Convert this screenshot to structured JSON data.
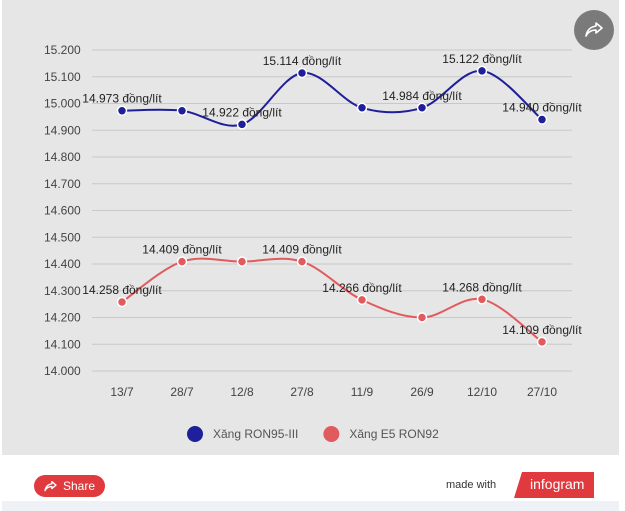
{
  "chart_data": {
    "type": "line",
    "categories": [
      "13/7",
      "28/7",
      "12/8",
      "27/8",
      "11/9",
      "26/9",
      "12/10",
      "27/10"
    ],
    "y_ticks": [
      "15.200",
      "15.100",
      "15.000",
      "14.900",
      "14.800",
      "14.700",
      "14.600",
      "14.500",
      "14.400",
      "14.300",
      "14.200",
      "14.100",
      "14.000"
    ],
    "ylim": [
      14.0,
      15.2
    ],
    "grid": true,
    "legend_position": "bottom-center",
    "series": [
      {
        "name": "Xăng RON95-III",
        "color": "#1f1f99",
        "values": [
          14.973,
          14.973,
          14.922,
          15.114,
          14.984,
          14.984,
          15.122,
          14.94
        ],
        "point_labels": [
          "14.973 đồng/lít",
          "",
          "14.922 đồng/lít",
          "15.114 đồng/lít",
          "",
          "14.984 đồng/lít",
          "15.122 đồng/lít",
          "14.940 đồng/lít"
        ]
      },
      {
        "name": "Xăng E5 RON92",
        "color": "#e05a5e",
        "values": [
          14.258,
          14.409,
          14.409,
          14.409,
          14.266,
          14.2,
          14.268,
          14.109
        ],
        "point_labels": [
          "14.258 đồng/lít",
          "14.409 đồng/lít",
          "",
          "14.409 đồng/lít",
          "14.266 đồng/lít",
          "",
          "14.268 đồng/lít",
          "14.109 đồng/lít"
        ]
      }
    ]
  },
  "footer": {
    "share_label": "Share",
    "made_with": "made with",
    "brand": "infogram"
  },
  "icons": {
    "top_share": "share-icon",
    "button_share": "share-icon"
  }
}
